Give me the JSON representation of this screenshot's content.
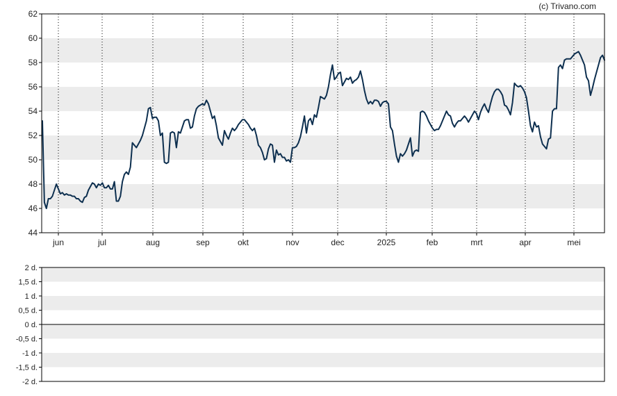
{
  "credit": "(c) Trivano.com",
  "chart_data": [
    {
      "type": "line",
      "x_ticks": [
        "jun",
        "jul",
        "aug",
        "sep",
        "okt",
        "nov",
        "dec",
        "2025",
        "feb",
        "mrt",
        "apr",
        "mei"
      ],
      "y_ticks": [
        "44",
        "46",
        "48",
        "50",
        "52",
        "54",
        "56",
        "58",
        "60",
        "62"
      ],
      "ylim": [
        44,
        62
      ],
      "grid": "horizontal bands and dotted vertical lines",
      "colors": {
        "line": "#0d2f4f",
        "band": "#ececec",
        "frame": "#000000",
        "gridline": "#000000"
      },
      "series": [
        {
          "values": [
            53.2,
            46.5,
            46.0,
            46.8,
            46.8,
            47.0,
            47.5,
            48.0,
            47.6,
            47.2,
            47.3,
            47.1,
            47.2,
            47.1,
            47.1,
            47.0,
            47.0,
            46.8,
            46.8,
            46.6,
            46.5,
            46.9,
            47.0,
            47.5,
            47.8,
            48.1,
            48.0,
            47.7,
            48.0,
            47.9,
            48.1,
            47.7,
            47.7,
            47.9,
            47.6,
            47.6,
            48.2,
            46.6,
            46.6,
            47.0,
            48.2,
            48.8,
            49.0,
            48.8,
            49.4,
            51.4,
            51.2,
            51.0,
            51.3,
            51.6,
            52.0,
            52.6,
            53.2,
            54.2,
            54.3,
            53.4,
            53.5,
            53.5,
            53.2,
            52.0,
            52.2,
            49.8,
            49.7,
            49.8,
            52.2,
            52.3,
            52.2,
            51.0,
            52.3,
            52.2,
            52.7,
            53.2,
            53.3,
            53.3,
            52.6,
            52.7,
            53.6,
            54.2,
            54.4,
            54.5,
            54.6,
            54.5,
            54.9,
            54.6,
            54.0,
            53.4,
            53.6,
            52.8,
            51.8,
            51.5,
            51.2,
            52.4,
            52.0,
            51.7,
            52.2,
            52.6,
            52.4,
            52.6,
            52.9,
            53.1,
            53.3,
            53.3,
            53.1,
            52.9,
            52.6,
            52.4,
            52.6,
            52.0,
            51.2,
            51.0,
            50.6,
            50.0,
            50.1,
            50.9,
            51.3,
            51.2,
            49.8,
            50.8,
            50.4,
            50.5,
            50.2,
            50.2,
            49.9,
            50.0,
            49.8,
            51.0,
            51.0,
            51.1,
            51.4,
            51.9,
            52.7,
            53.6,
            52.2,
            53.2,
            53.4,
            52.9,
            53.7,
            53.5,
            54.3,
            55.2,
            55.1,
            55.0,
            55.3,
            56.0,
            57.0,
            57.8,
            56.6,
            56.8,
            57.1,
            57.2,
            56.1,
            56.4,
            56.7,
            56.6,
            56.8,
            56.3,
            56.5,
            56.6,
            56.8,
            57.3,
            56.6,
            55.7,
            55.0,
            54.6,
            54.8,
            54.6,
            54.9,
            54.9,
            54.8,
            54.4,
            54.7,
            54.8,
            54.8,
            54.6,
            52.7,
            52.4,
            51.3,
            50.3,
            49.8,
            50.5,
            50.3,
            50.5,
            50.8,
            51.3,
            51.8,
            50.3,
            50.7,
            50.8,
            50.7,
            53.9,
            54.0,
            53.9,
            53.6,
            53.2,
            52.9,
            52.6,
            52.4,
            52.5,
            52.5,
            52.8,
            53.2,
            53.6,
            54.0,
            53.7,
            53.6,
            53.0,
            52.7,
            53.0,
            53.2,
            53.2,
            53.4,
            53.6,
            53.4,
            53.1,
            53.4,
            53.7,
            54.0,
            53.8,
            53.3,
            53.9,
            54.3,
            54.6,
            54.2,
            53.9,
            54.6,
            55.2,
            55.6,
            55.8,
            55.8,
            55.6,
            55.3,
            54.5,
            54.4,
            54.1,
            53.7,
            54.7,
            56.3,
            56.1,
            56.0,
            56.1,
            55.9,
            55.6,
            55.1,
            54.0,
            52.8,
            52.3,
            53.1,
            52.7,
            52.8,
            51.9,
            51.3,
            51.1,
            50.9,
            51.7,
            51.8,
            54.0,
            54.2,
            54.2,
            57.6,
            57.8,
            57.5,
            58.2,
            58.3,
            58.3,
            58.3,
            58.5,
            58.7,
            58.8,
            58.9,
            58.6,
            58.2,
            57.8,
            56.8,
            56.5,
            55.3,
            55.9,
            56.6,
            57.2,
            57.8,
            58.4,
            58.6,
            58.2
          ]
        }
      ]
    },
    {
      "type": "line",
      "y_ticks": [
        "2 d.",
        "1,5 d.",
        "1 d.",
        "0,5 d.",
        "0 d.",
        "-0,5 d.",
        "-1 d.",
        "-1,5 d.",
        "-2 d."
      ],
      "ylim": [
        -2,
        2
      ],
      "series": []
    }
  ]
}
